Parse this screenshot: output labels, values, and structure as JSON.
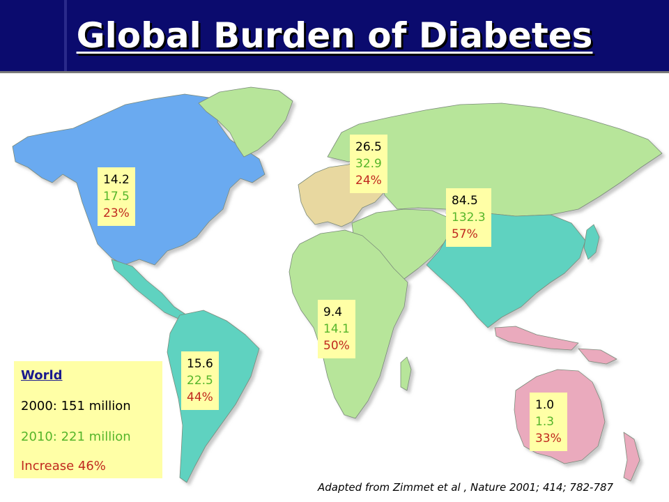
{
  "title": "Global Burden of Diabetes",
  "colors": {
    "header_bg": "#0b0b6e",
    "north_america": "#6aaaf0",
    "latin_america": "#5fd2c0",
    "europe": "#e8d8a0",
    "africa_middle_east": "#b7e59a",
    "asia": "#5fd2c0",
    "oceania": "#eaaabd",
    "label_bg": "#ffffa6",
    "year_2000": "#000000",
    "year_2010": "#55b52a",
    "increase": "#c0281e"
  },
  "regions": {
    "north_america": {
      "v2000": "14.2",
      "v2010": "17.5",
      "increase": "23%"
    },
    "europe": {
      "v2000": "26.5",
      "v2010": "32.9",
      "increase": "24%"
    },
    "asia": {
      "v2000": "84.5",
      "v2010": "132.3",
      "increase": "57%"
    },
    "africa": {
      "v2000": "9.4",
      "v2010": "14.1",
      "increase": "50%"
    },
    "south_america": {
      "v2000": "15.6",
      "v2010": "22.5",
      "increase": "44%"
    },
    "oceania": {
      "v2000": "1.0",
      "v2010": "1.3",
      "increase": "33%"
    }
  },
  "world": {
    "title": "World",
    "line_2000": "2000: 151 million",
    "line_2010": "2010: 221 million",
    "increase": "Increase 46%"
  },
  "source": "Adapted from Zimmet et al , Nature 2001; 414; 782-787"
}
